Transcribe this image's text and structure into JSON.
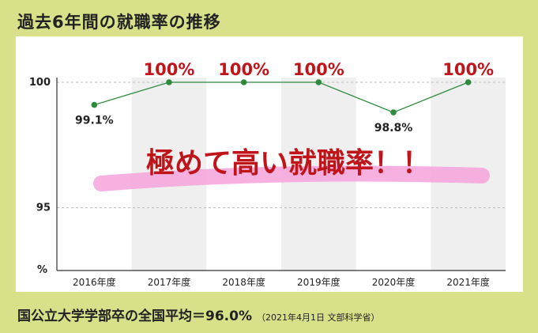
{
  "title": "過去6年間の就職率の推移",
  "footer": {
    "main": "国公立大学学部卒の全国平均＝96.0%",
    "note": "（2021年4月1日 文部科学省）"
  },
  "colors": {
    "background": "#d8e089",
    "line": "#2e8b3e",
    "highlight_label": "#c0141b",
    "marker_stroke": "#f5a3dc",
    "band": "#efefef"
  },
  "chart_data": {
    "type": "line",
    "categories": [
      "2016年度",
      "2017年度",
      "2018年度",
      "2019年度",
      "2020年度",
      "2021年度"
    ],
    "values": [
      99.1,
      100,
      100,
      100,
      98.8,
      100
    ],
    "data_labels": [
      "99.1%",
      "100%",
      "100%",
      "100%",
      "98.8%",
      "100%"
    ],
    "y_tick_labels": [
      "100",
      "95"
    ],
    "y_unit_label": "%",
    "ylim": [
      92.5,
      100
    ],
    "grid": true,
    "annotation": "極めて高い就職率！！"
  }
}
